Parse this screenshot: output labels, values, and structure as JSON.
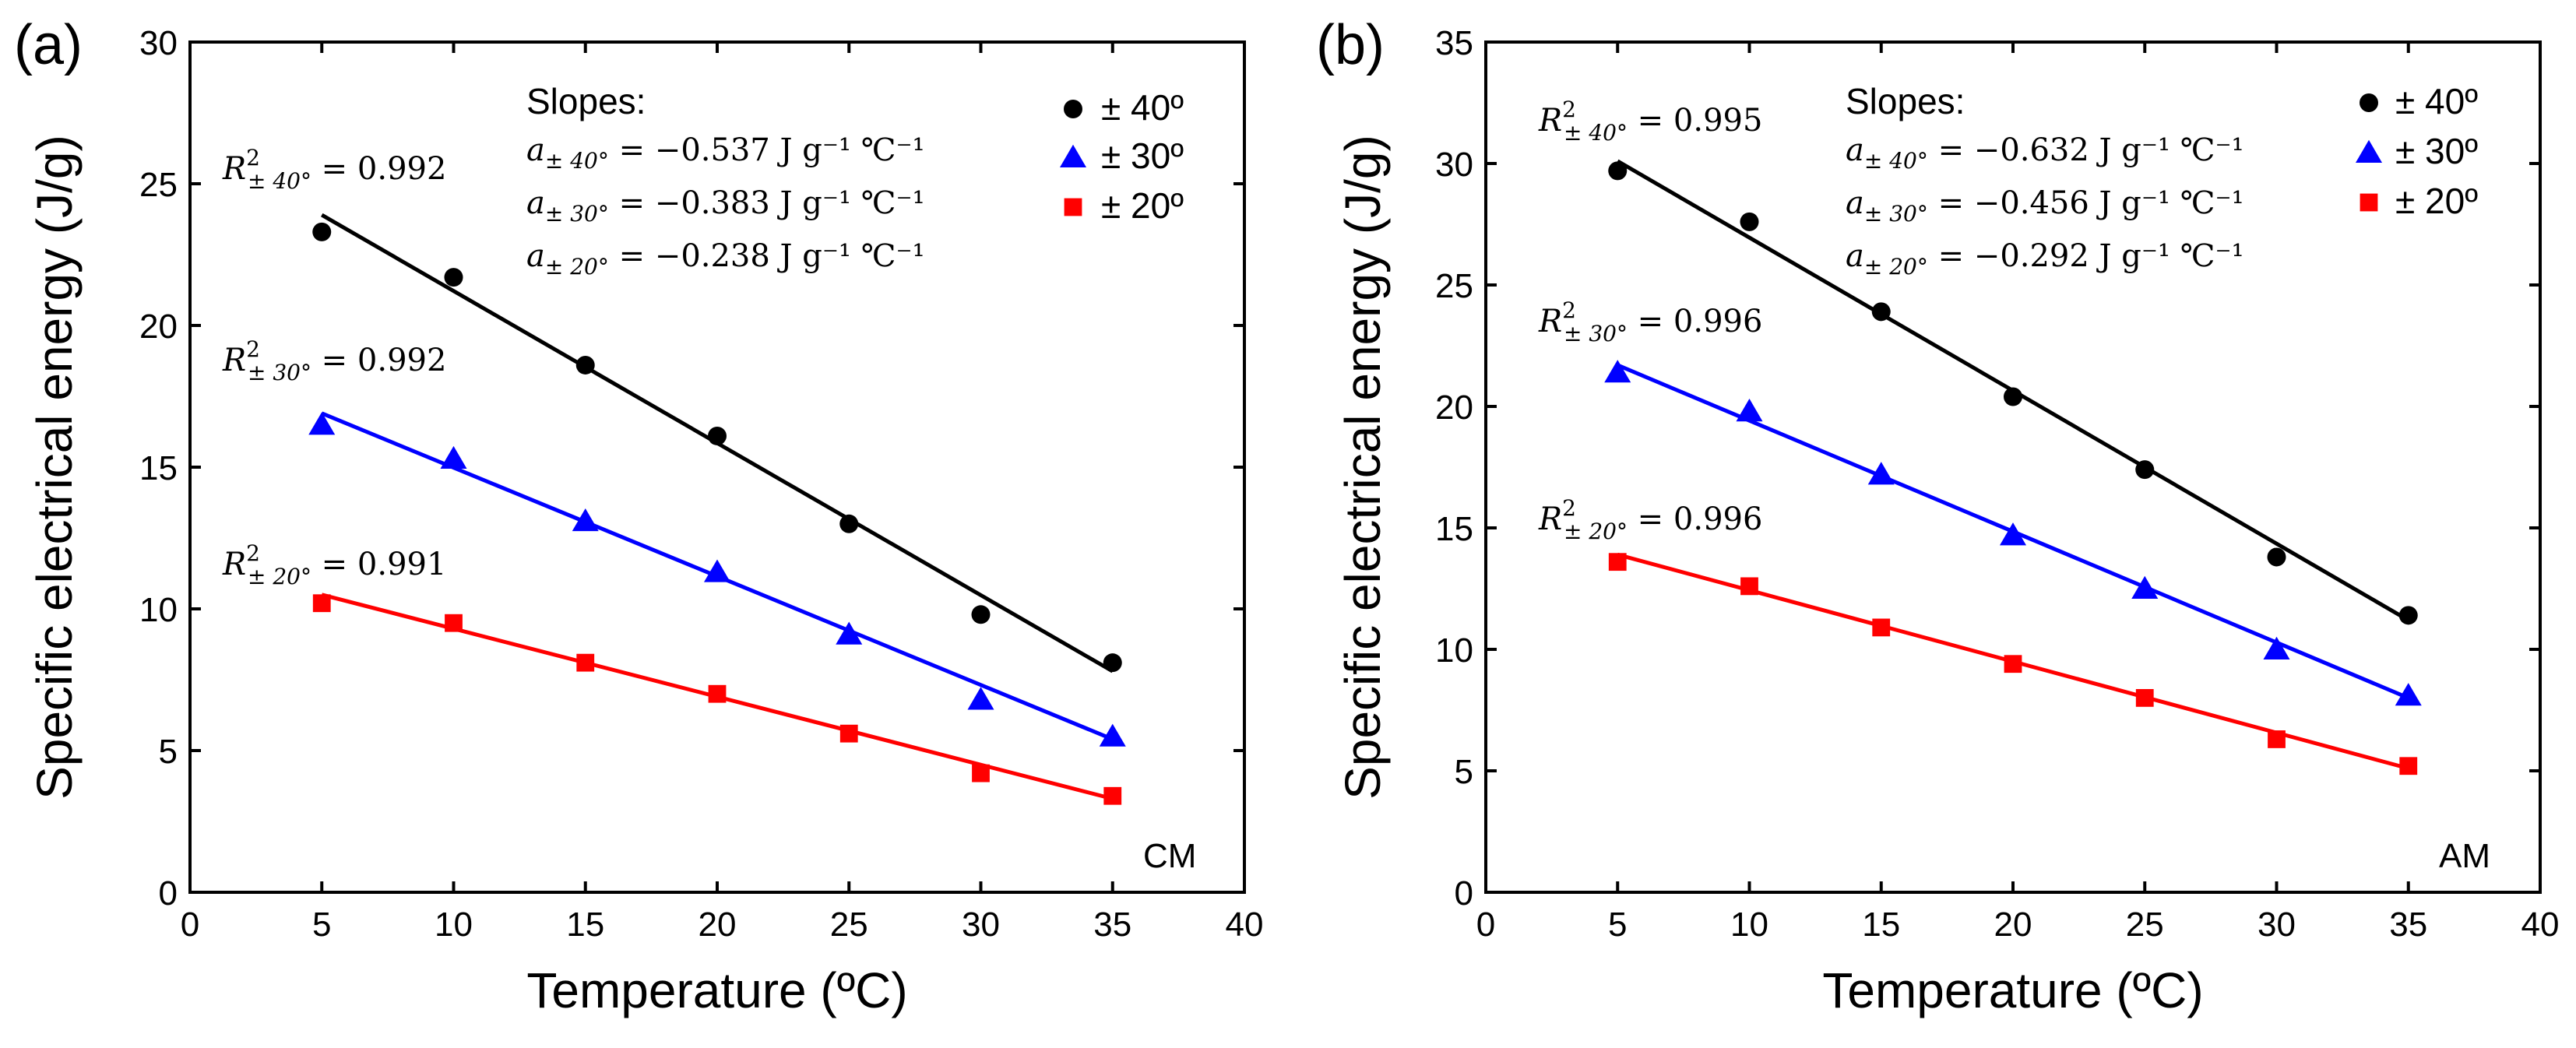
{
  "chart_data": [
    {
      "type": "scatter",
      "panel_label": "(a)",
      "tag": "CM",
      "xlabel": "Temperature (ºC)",
      "ylabel": "Specific electrical energy (J/g)",
      "xlim": [
        0,
        40
      ],
      "ylim": [
        0,
        30
      ],
      "xticks": [
        "0",
        "5",
        "10",
        "15",
        "20",
        "25",
        "30",
        "35",
        "40"
      ],
      "yticks": [
        "0",
        "5",
        "10",
        "15",
        "20",
        "25",
        "30"
      ],
      "x": [
        5,
        10,
        15,
        20,
        25,
        30,
        35
      ],
      "series": [
        {
          "name": "± 40º",
          "color": "#000000",
          "marker": "circle",
          "values": [
            23.3,
            21.7,
            18.6,
            16.1,
            13.0,
            9.8,
            8.1
          ],
          "fit": [
            [
              5,
              23.9
            ],
            [
              35,
              7.8
            ]
          ]
        },
        {
          "name": "± 30º",
          "color": "#0000ff",
          "marker": "triangle",
          "values": [
            16.5,
            15.3,
            13.1,
            11.3,
            9.1,
            6.8,
            5.5
          ],
          "fit": [
            [
              5,
              16.9
            ],
            [
              35,
              5.4
            ]
          ]
        },
        {
          "name": "± 20º",
          "color": "#ff0000",
          "marker": "square",
          "values": [
            10.2,
            9.5,
            8.1,
            7.0,
            5.6,
            4.2,
            3.4
          ],
          "fit": [
            [
              5,
              10.5
            ],
            [
              35,
              3.3
            ]
          ]
        }
      ],
      "slopes_title": "Slopes:",
      "slopes": [
        "−0.537",
        "−0.383",
        "−0.238"
      ],
      "slope_unit": "J g⁻¹ ℃⁻¹",
      "r2_values": [
        "0.992",
        "0.992",
        "0.991"
      ],
      "r2_subscripts": [
        "± 40°",
        "± 30°",
        "± 20°"
      ]
    },
    {
      "type": "scatter",
      "panel_label": "(b)",
      "tag": "AM",
      "xlabel": "Temperature (ºC)",
      "ylabel": "Specific electrical energy (J/g)",
      "xlim": [
        0,
        40
      ],
      "ylim": [
        0,
        35
      ],
      "xticks": [
        "0",
        "5",
        "10",
        "15",
        "20",
        "25",
        "30",
        "35",
        "40"
      ],
      "yticks": [
        "0",
        "5",
        "10",
        "15",
        "20",
        "25",
        "30",
        "35"
      ],
      "x": [
        5,
        10,
        15,
        20,
        25,
        30,
        35
      ],
      "series": [
        {
          "name": "± 40º",
          "color": "#000000",
          "marker": "circle",
          "values": [
            29.7,
            27.6,
            23.9,
            20.4,
            17.4,
            13.8,
            11.4
          ],
          "fit": [
            [
              5,
              30.1
            ],
            [
              35,
              11.2
            ]
          ]
        },
        {
          "name": "± 30º",
          "color": "#0000ff",
          "marker": "triangle",
          "values": [
            21.4,
            19.8,
            17.2,
            14.7,
            12.5,
            10.0,
            8.1
          ],
          "fit": [
            [
              5,
              21.7
            ],
            [
              35,
              8.0
            ]
          ]
        },
        {
          "name": "± 20º",
          "color": "#ff0000",
          "marker": "square",
          "values": [
            13.6,
            12.6,
            10.9,
            9.4,
            8.0,
            6.3,
            5.2
          ],
          "fit": [
            [
              5,
              13.9
            ],
            [
              35,
              5.1
            ]
          ]
        }
      ],
      "slopes_title": "Slopes:",
      "slopes": [
        "−0.632",
        "−0.456",
        "−0.292"
      ],
      "slope_unit": "J g⁻¹ ℃⁻¹",
      "r2_values": [
        "0.995",
        "0.996",
        "0.996"
      ],
      "r2_subscripts": [
        "± 40°",
        "± 30°",
        "± 20°"
      ]
    }
  ]
}
